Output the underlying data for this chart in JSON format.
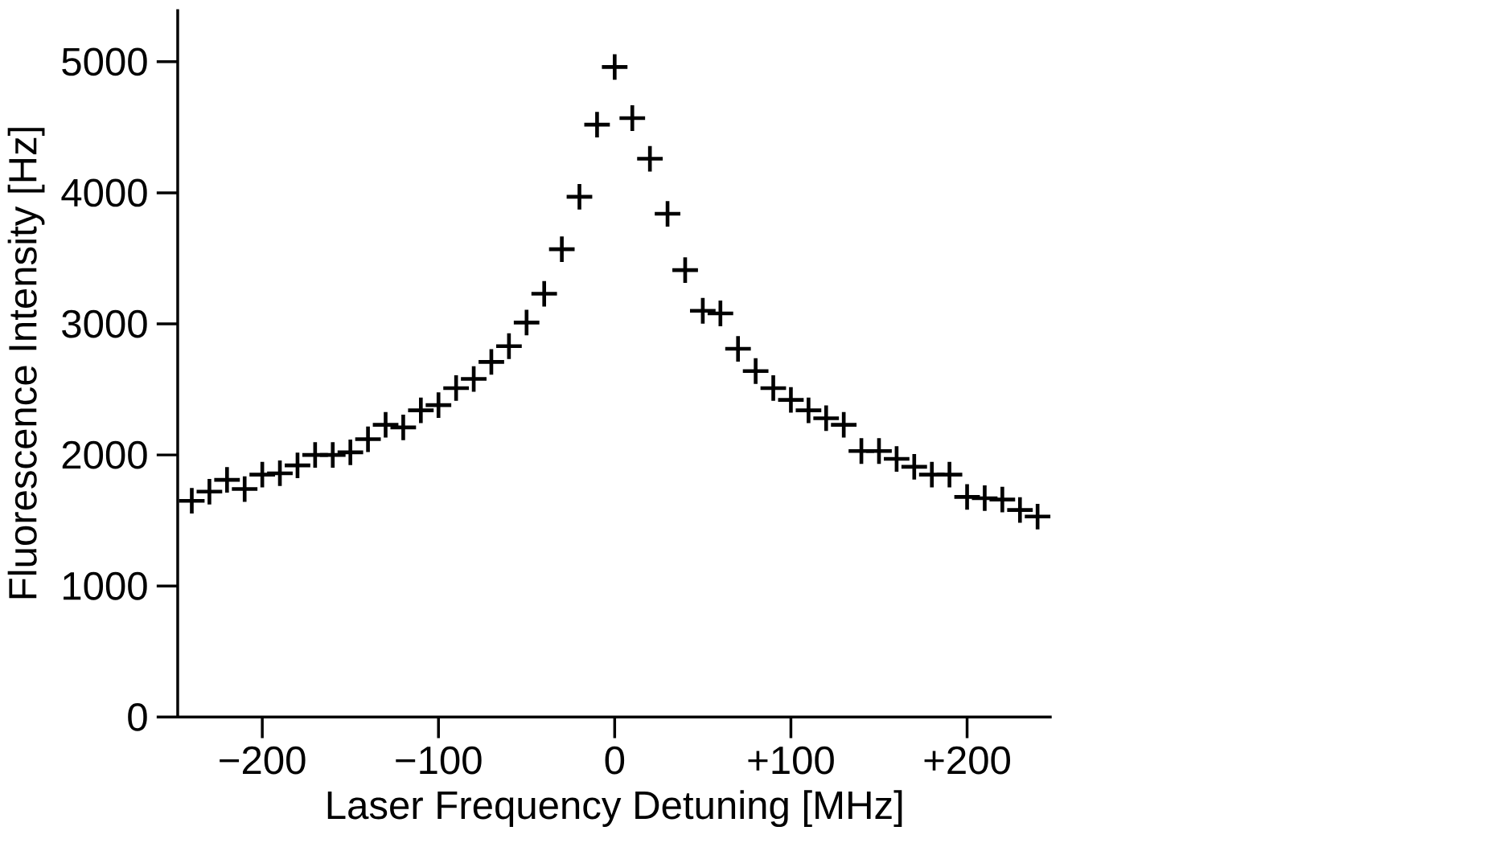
{
  "chart_data": {
    "type": "scatter",
    "xlabel": "Laser Frequency Detuning [MHz]",
    "ylabel": "Fluorescence Intensity [Hz]",
    "x": [
      -240,
      -230,
      -220,
      -210,
      -200,
      -190,
      -180,
      -170,
      -160,
      -150,
      -140,
      -130,
      -120,
      -110,
      -100,
      -90,
      -80,
      -70,
      -60,
      -50,
      -40,
      -30,
      -20,
      -10,
      0,
      10,
      20,
      30,
      40,
      50,
      60,
      70,
      80,
      90,
      100,
      110,
      120,
      130,
      140,
      150,
      160,
      170,
      180,
      190,
      200,
      210,
      220,
      230,
      240
    ],
    "series": [
      {
        "color": "#000000",
        "values": [
          1650,
          1720,
          1810,
          1740,
          1850,
          1860,
          1920,
          2000,
          2000,
          2020,
          2120,
          2230,
          2210,
          2340,
          2380,
          2510,
          2580,
          2710,
          2830,
          3010,
          3230,
          3570,
          3970,
          4520,
          4960,
          4570,
          4260,
          3840,
          3410,
          3100,
          3080,
          2810,
          2640,
          2510,
          2420,
          2340,
          2280,
          2230,
          2030,
          2030,
          1970,
          1910,
          1850,
          1850,
          1680,
          1670,
          1660,
          1580,
          1530
        ]
      }
    ],
    "xlim": [
      -248,
      248
    ],
    "ylim": [
      0,
      5400
    ],
    "xticks": [
      {
        "value": -200,
        "label": "−200"
      },
      {
        "value": -100,
        "label": "−100"
      },
      0,
      {
        "value": 100,
        "label": "+100"
      },
      {
        "value": 200,
        "label": "+200"
      }
    ],
    "yticks": [
      0,
      1000,
      2000,
      3000,
      4000,
      5000
    ],
    "marker": "cross",
    "grid": false
  }
}
